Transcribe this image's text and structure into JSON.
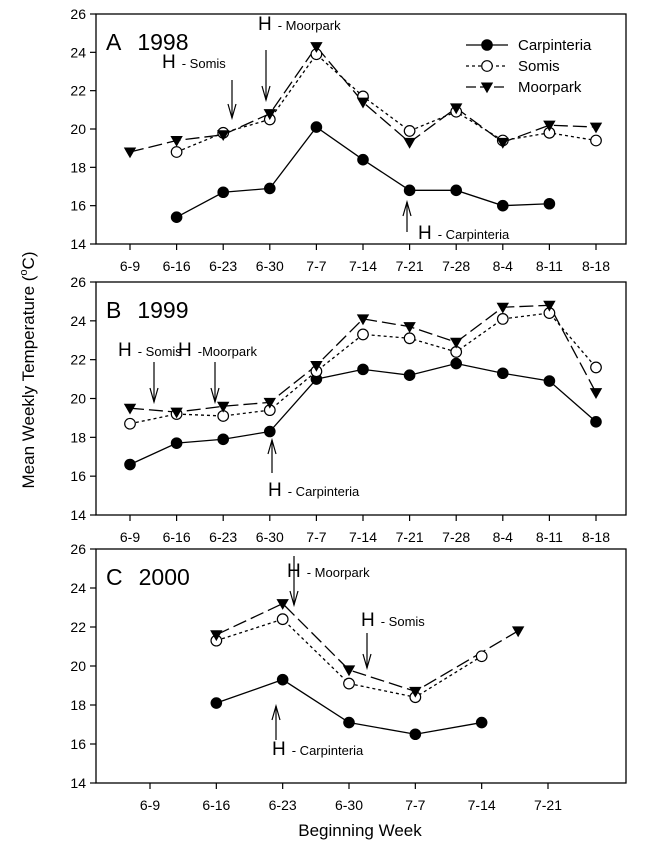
{
  "figure": {
    "ylabel": "Mean Weekly Temperature (",
    "ylabel_sup": "o",
    "ylabel_unit": "C)",
    "xlabel": "Beginning Week"
  },
  "chart_data": [
    {
      "type": "line",
      "panel_letter": "A",
      "title": "1998",
      "categories": [
        "6-9",
        "6-16",
        "6-23",
        "6-30",
        "7-7",
        "7-14",
        "7-21",
        "7-28",
        "8-4",
        "8-11",
        "8-18"
      ],
      "ylim": [
        14,
        26
      ],
      "yticks": [
        14,
        16,
        18,
        20,
        22,
        24,
        26
      ],
      "legend": {
        "placement": "top-right",
        "entries": [
          "Carpinteria",
          "Somis",
          "Moorpark"
        ]
      },
      "series": [
        {
          "name": "Carpinteria",
          "marker": "filled-circle",
          "line": "solid",
          "points": [
            [
              1,
              15.4
            ],
            [
              2,
              16.7
            ],
            [
              3,
              16.9
            ],
            [
              4,
              20.1
            ],
            [
              5,
              18.4
            ],
            [
              6,
              16.8
            ],
            [
              7,
              16.8
            ],
            [
              8,
              16.0
            ],
            [
              9,
              16.1
            ]
          ]
        },
        {
          "name": "Somis",
          "marker": "open-circle",
          "line": "dashed",
          "points": [
            [
              1,
              18.8
            ],
            [
              2,
              19.8
            ],
            [
              3,
              20.5
            ],
            [
              4,
              23.9
            ],
            [
              5,
              21.7
            ],
            [
              6,
              19.9
            ],
            [
              7,
              20.9
            ],
            [
              8,
              19.4
            ],
            [
              9,
              19.8
            ],
            [
              10,
              19.4
            ]
          ]
        },
        {
          "name": "Moorpark",
          "marker": "filled-triangle-down",
          "line": "dashed",
          "points": [
            [
              0,
              18.8
            ],
            [
              1,
              19.4
            ],
            [
              2,
              19.7
            ],
            [
              3,
              20.8
            ],
            [
              4,
              24.3
            ],
            [
              5,
              21.4
            ],
            [
              6,
              19.3
            ],
            [
              7,
              21.1
            ],
            [
              8,
              19.3
            ],
            [
              9,
              20.2
            ],
            [
              10,
              20.1
            ]
          ]
        }
      ],
      "annotations": [
        {
          "label": "H",
          "text": "- Somis",
          "arrow": "down",
          "x": 2.7
        },
        {
          "label": "H",
          "text": "- Moorpark",
          "arrow": "down",
          "x": 3.0
        },
        {
          "label": "H",
          "text": "- Carpinteria",
          "arrow": "up",
          "x": 6.0
        }
      ]
    },
    {
      "type": "line",
      "panel_letter": "B",
      "title": "1999",
      "categories": [
        "6-9",
        "6-16",
        "6-23",
        "6-30",
        "7-7",
        "7-14",
        "7-21",
        "7-28",
        "8-4",
        "8-11",
        "8-18"
      ],
      "ylim": [
        14,
        26
      ],
      "yticks": [
        14,
        16,
        18,
        20,
        22,
        24,
        26
      ],
      "series": [
        {
          "name": "Carpinteria",
          "marker": "filled-circle",
          "line": "solid",
          "points": [
            [
              0,
              16.6
            ],
            [
              1,
              17.7
            ],
            [
              2,
              17.9
            ],
            [
              3,
              18.3
            ],
            [
              4,
              21.0
            ],
            [
              5,
              21.5
            ],
            [
              6,
              21.2
            ],
            [
              7,
              21.8
            ],
            [
              8,
              21.3
            ],
            [
              9,
              20.9
            ],
            [
              10,
              18.8
            ]
          ]
        },
        {
          "name": "Somis",
          "marker": "open-circle",
          "line": "dashed",
          "points": [
            [
              0,
              18.7
            ],
            [
              1,
              19.2
            ],
            [
              2,
              19.1
            ],
            [
              3,
              19.4
            ],
            [
              4,
              21.4
            ],
            [
              5,
              23.3
            ],
            [
              6,
              23.1
            ],
            [
              7,
              22.4
            ],
            [
              8,
              24.1
            ],
            [
              9,
              24.4
            ],
            [
              10,
              21.6
            ]
          ]
        },
        {
          "name": "Moorpark",
          "marker": "filled-triangle-down",
          "line": "dashed",
          "points": [
            [
              0,
              19.5
            ],
            [
              1,
              19.3
            ],
            [
              2,
              19.6
            ],
            [
              3,
              19.8
            ],
            [
              4,
              21.7
            ],
            [
              5,
              24.1
            ],
            [
              6,
              23.7
            ],
            [
              7,
              22.9
            ],
            [
              8,
              24.7
            ],
            [
              9,
              24.8
            ],
            [
              10,
              20.3
            ]
          ]
        }
      ],
      "annotations": [
        {
          "label": "H",
          "text": "- Somis",
          "arrow": "down",
          "x": 0.45
        },
        {
          "label": "H",
          "text": "-Moorpark",
          "arrow": "down",
          "x": 1.65
        },
        {
          "label": "H",
          "text": "- Carpinteria",
          "arrow": "up",
          "x": 3.1
        }
      ]
    },
    {
      "type": "line",
      "panel_letter": "C",
      "title": "2000",
      "categories": [
        "6-9",
        "6-16",
        "6-23",
        "6-30",
        "7-7",
        "7-14",
        "7-21"
      ],
      "ylim": [
        14,
        26
      ],
      "yticks": [
        14,
        16,
        18,
        20,
        22,
        24,
        26
      ],
      "series": [
        {
          "name": "Carpinteria",
          "marker": "filled-circle",
          "line": "solid",
          "points": [
            [
              1,
              18.1
            ],
            [
              2,
              19.3
            ],
            [
              3,
              17.1
            ],
            [
              4,
              16.5
            ],
            [
              5,
              17.1
            ]
          ]
        },
        {
          "name": "Somis",
          "marker": "open-circle",
          "line": "dashed",
          "points": [
            [
              1,
              21.3
            ],
            [
              2,
              22.4
            ],
            [
              3,
              19.1
            ],
            [
              4,
              18.4
            ],
            [
              5,
              20.5
            ]
          ]
        },
        {
          "name": "Moorpark",
          "marker": "filled-triangle-down",
          "line": "dashed",
          "points": [
            [
              1,
              21.6
            ],
            [
              2,
              23.2
            ],
            [
              3,
              19.8
            ],
            [
              4,
              18.7
            ],
            [
              5.55,
              21.8
            ]
          ]
        }
      ],
      "annotations": [
        {
          "label": "H",
          "text": "- Moorpark",
          "arrow": "down",
          "x": 1.95
        },
        {
          "label": "H",
          "text": "- Somis",
          "arrow": "down",
          "x": 3.05
        },
        {
          "label": "H",
          "text": "- Carpinteria",
          "arrow": "up",
          "x": 1.85
        }
      ]
    }
  ]
}
